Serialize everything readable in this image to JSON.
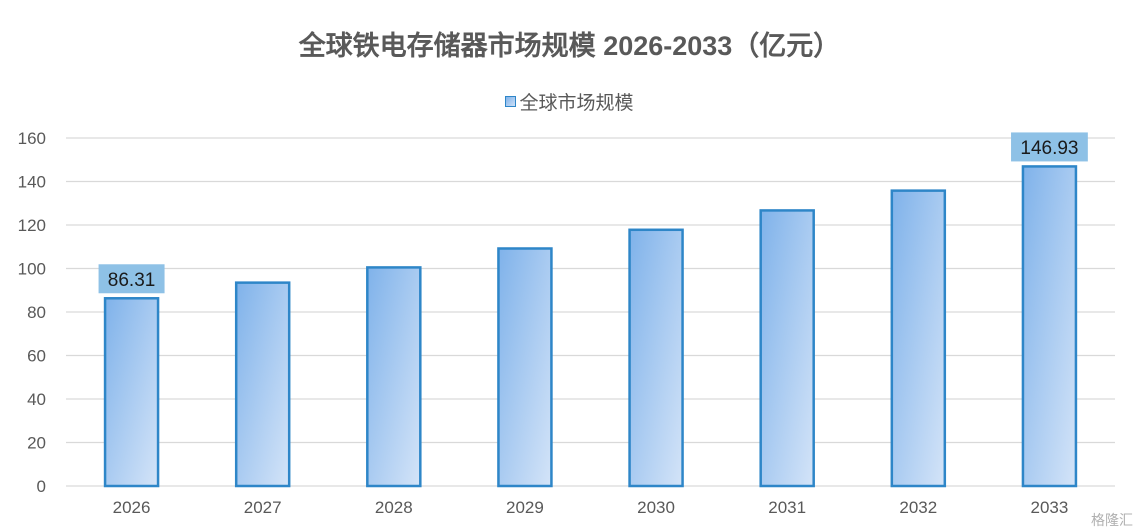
{
  "chart_data": {
    "type": "bar",
    "title": "全球铁电存储器市场规模 2026-2033（亿元）",
    "categories": [
      "2026",
      "2027",
      "2028",
      "2029",
      "2030",
      "2031",
      "2032",
      "2033"
    ],
    "series": [
      {
        "name": "全球市场规模",
        "values": [
          86.31,
          93.5,
          100.5,
          109.2,
          117.8,
          126.7,
          135.8,
          146.93
        ]
      }
    ],
    "data_labels": [
      {
        "category": "2026",
        "text": "86.31"
      },
      {
        "category": "2033",
        "text": "146.93"
      }
    ],
    "yticks": [
      "0",
      "20",
      "40",
      "60",
      "80",
      "100",
      "120",
      "140",
      "160"
    ],
    "ylim": [
      0,
      160
    ],
    "grid": true,
    "legend_position": "top-center",
    "colors": {
      "bar_fill_start": "#7fb2ea",
      "bar_fill_end": "#d4e4f8",
      "bar_border": "#2e86c8",
      "label_box": "#8ec1e6",
      "grid": "#d9d9d9",
      "text": "#595959"
    }
  },
  "watermark": "格隆汇"
}
